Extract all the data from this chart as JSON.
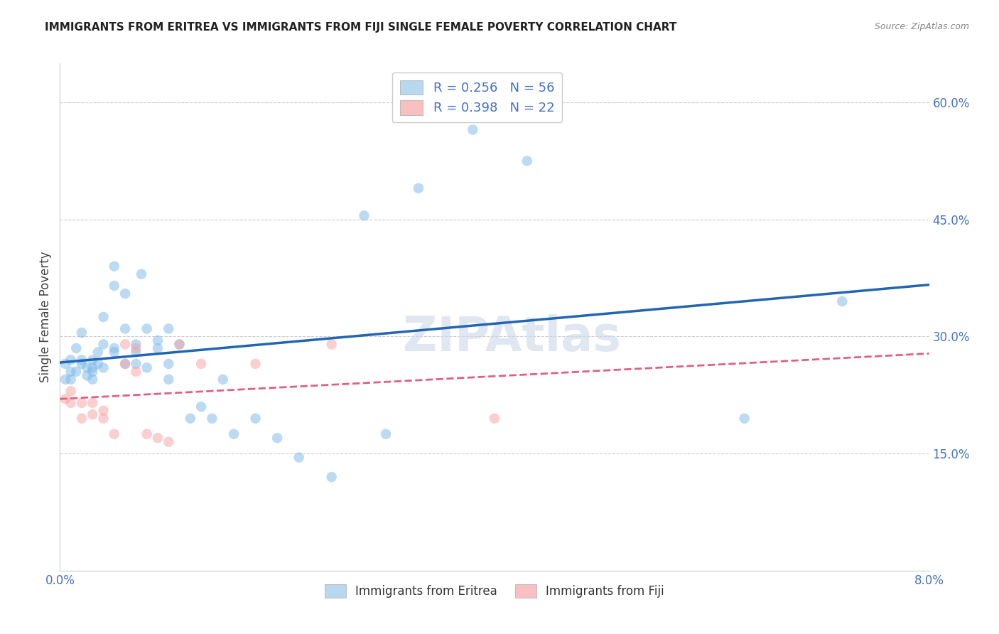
{
  "title": "IMMIGRANTS FROM ERITREA VS IMMIGRANTS FROM FIJI SINGLE FEMALE POVERTY CORRELATION CHART",
  "source": "Source: ZipAtlas.com",
  "ylabel_label": "Single Female Poverty",
  "xlim": [
    0.0,
    0.08
  ],
  "ylim": [
    0.0,
    0.65
  ],
  "xtick_pos": [
    0.0,
    0.02,
    0.04,
    0.06,
    0.08
  ],
  "xtick_labels": [
    "0.0%",
    "",
    "",
    "",
    "8.0%"
  ],
  "ytick_positions_right": [
    0.15,
    0.3,
    0.45,
    0.6
  ],
  "ytick_labels_right": [
    "15.0%",
    "30.0%",
    "45.0%",
    "60.0%"
  ],
  "eritrea_color": "#7ab8e8",
  "fiji_color": "#f4a0a0",
  "eritrea_R": "0.256",
  "eritrea_N": "56",
  "fiji_R": "0.398",
  "fiji_N": "22",
  "background_color": "#ffffff",
  "grid_color": "#cccccc",
  "eritrea_x": [
    0.0005,
    0.0005,
    0.001,
    0.001,
    0.001,
    0.0015,
    0.0015,
    0.002,
    0.002,
    0.002,
    0.0025,
    0.0025,
    0.003,
    0.003,
    0.003,
    0.003,
    0.0035,
    0.0035,
    0.004,
    0.004,
    0.004,
    0.005,
    0.005,
    0.005,
    0.005,
    0.006,
    0.006,
    0.006,
    0.007,
    0.007,
    0.007,
    0.0075,
    0.008,
    0.008,
    0.009,
    0.009,
    0.01,
    0.01,
    0.01,
    0.011,
    0.012,
    0.013,
    0.014,
    0.015,
    0.016,
    0.018,
    0.02,
    0.022,
    0.025,
    0.028,
    0.03,
    0.033,
    0.038,
    0.043,
    0.063,
    0.072
  ],
  "eritrea_y": [
    0.265,
    0.245,
    0.27,
    0.255,
    0.245,
    0.285,
    0.255,
    0.305,
    0.27,
    0.265,
    0.26,
    0.25,
    0.27,
    0.26,
    0.255,
    0.245,
    0.28,
    0.265,
    0.325,
    0.29,
    0.26,
    0.39,
    0.365,
    0.285,
    0.28,
    0.355,
    0.31,
    0.265,
    0.29,
    0.28,
    0.265,
    0.38,
    0.31,
    0.26,
    0.295,
    0.285,
    0.31,
    0.265,
    0.245,
    0.29,
    0.195,
    0.21,
    0.195,
    0.245,
    0.175,
    0.195,
    0.17,
    0.145,
    0.12,
    0.455,
    0.175,
    0.49,
    0.565,
    0.525,
    0.195,
    0.345
  ],
  "fiji_x": [
    0.0005,
    0.001,
    0.001,
    0.002,
    0.002,
    0.003,
    0.003,
    0.004,
    0.004,
    0.005,
    0.006,
    0.006,
    0.007,
    0.007,
    0.008,
    0.009,
    0.01,
    0.011,
    0.013,
    0.018,
    0.025,
    0.04
  ],
  "fiji_y": [
    0.22,
    0.23,
    0.215,
    0.215,
    0.195,
    0.215,
    0.2,
    0.205,
    0.195,
    0.175,
    0.29,
    0.265,
    0.285,
    0.255,
    0.175,
    0.17,
    0.165,
    0.29,
    0.265,
    0.265,
    0.29,
    0.195
  ],
  "eritrea_line_color": "#2166b0",
  "fiji_line_color": "#e06080",
  "legend_box_color_eritrea": "#b8d8f0",
  "legend_box_color_fiji": "#f8c0c0",
  "tick_color": "#4472c4",
  "title_color": "#222222",
  "source_color": "#888888",
  "watermark_color": "#ccd8e8",
  "ylabel_color": "#444444"
}
